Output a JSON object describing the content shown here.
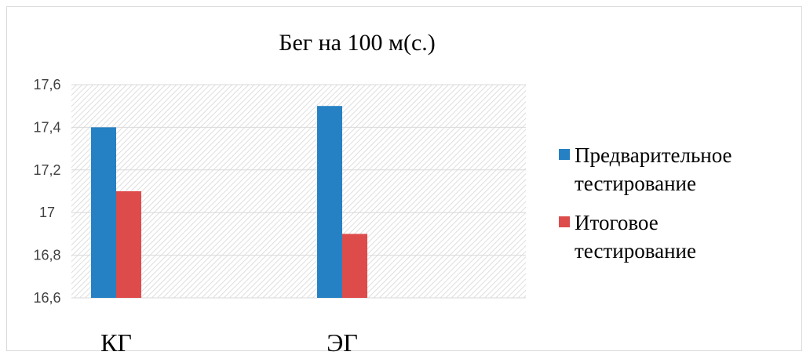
{
  "chart_data": {
    "type": "bar",
    "title": "Бег на 100 м(с.)",
    "categories": [
      "КГ",
      "ЭГ"
    ],
    "series": [
      {
        "name": "Предварительное\nтестирование",
        "values": [
          17.4,
          17.5
        ],
        "color": "#2581c4"
      },
      {
        "name": "Итоговое\nтестирование",
        "values": [
          17.1,
          16.9
        ],
        "color": "#de4b4b"
      }
    ],
    "ylim": [
      16.6,
      17.6
    ],
    "yticks": [
      "16,6",
      "16,8",
      "17",
      "17,2",
      "17,4",
      "17,6"
    ],
    "ytick_values": [
      16.6,
      16.8,
      17.0,
      17.2,
      17.4,
      17.6
    ],
    "grid": true,
    "plot_background": "hatched",
    "legend_position": "right"
  }
}
